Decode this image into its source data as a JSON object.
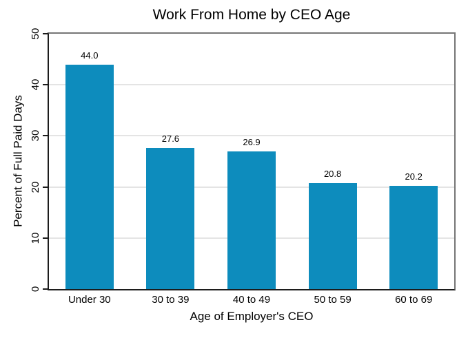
{
  "chart_data": {
    "type": "bar",
    "title": "Work From Home by CEO Age",
    "xlabel": "Age of Employer's CEO",
    "ylabel": "Percent of Full Paid Days",
    "categories": [
      "Under 30",
      "30 to 39",
      "40 to 49",
      "50 to 59",
      "60 to 69"
    ],
    "values": [
      44.0,
      27.6,
      26.9,
      20.8,
      20.2
    ],
    "value_labels": [
      "44.0",
      "27.6",
      "26.9",
      "20.8",
      "20.2"
    ],
    "ylim": [
      0,
      50
    ],
    "yticks": [
      0,
      10,
      20,
      30,
      40,
      50
    ],
    "grid": true,
    "legend": "none",
    "bar_color": "#0d8cbd",
    "gridline_color": "#e4e4e4",
    "axis_color": "#1c1c1c",
    "text_color": "#000000"
  }
}
